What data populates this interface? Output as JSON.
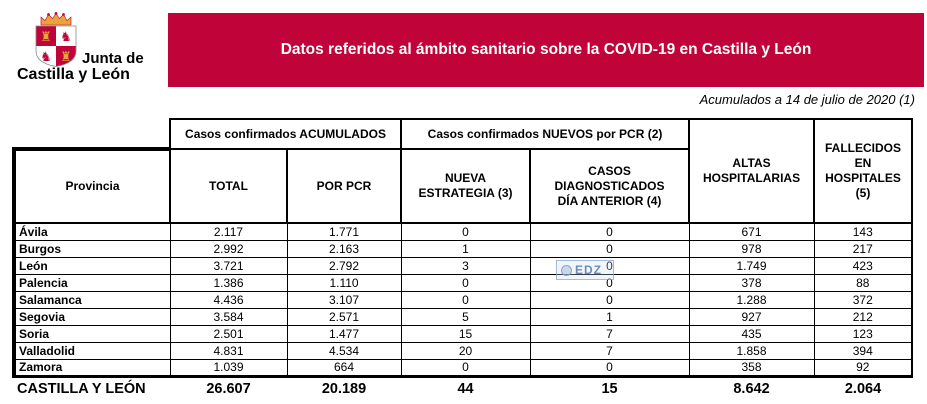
{
  "logo": {
    "line1": "Junta de",
    "line2": "Castilla y León",
    "emblem": "junta-castilla-y-leon-coat-of-arms",
    "colors": {
      "red": "#C00339",
      "gold": "#E8A33C"
    }
  },
  "banner": {
    "title": "Datos referidos al ámbito sanitario sobre la COVID-19 en Castilla y León",
    "bg_color": "#C00339",
    "text_color": "#FFFFFF"
  },
  "subtitle": "Acumulados a 14 de julio de 2020 (1)",
  "table": {
    "group_headers": [
      "Casos confirmados ACUMULADOS",
      "Casos confirmados NUEVOS por PCR (2)"
    ],
    "col_headers": [
      "Provincia",
      "TOTAL",
      "POR PCR",
      "NUEVA\nESTRATEGIA (3)",
      "CASOS\nDIAGNOSTICADOS\nDÍA ANTERIOR (4)",
      "ALTAS\nHOSPITALARIAS",
      "FALLECIDOS\nEN\nHOSPITALES\n(5)"
    ],
    "rows": [
      [
        "Ávila",
        "2.117",
        "1.771",
        "0",
        "0",
        "671",
        "143"
      ],
      [
        "Burgos",
        "2.992",
        "2.163",
        "1",
        "0",
        "978",
        "217"
      ],
      [
        "León",
        "3.721",
        "2.792",
        "3",
        "0",
        "1.749",
        "423"
      ],
      [
        "Palencia",
        "1.386",
        "1.110",
        "0",
        "0",
        "378",
        "88"
      ],
      [
        "Salamanca",
        "4.436",
        "3.107",
        "0",
        "0",
        "1.288",
        "372"
      ],
      [
        "Segovia",
        "3.584",
        "2.571",
        "5",
        "1",
        "927",
        "212"
      ],
      [
        "Soria",
        "2.501",
        "1.477",
        "15",
        "7",
        "435",
        "123"
      ],
      [
        "Valladolid",
        "4.831",
        "4.534",
        "20",
        "7",
        "1.858",
        "394"
      ],
      [
        "Zamora",
        "1.039",
        "664",
        "0",
        "0",
        "358",
        "92"
      ]
    ],
    "totals": [
      "CASTILLA Y LEÓN",
      "26.607",
      "20.189",
      "44",
      "15",
      "8.642",
      "2.064"
    ]
  },
  "watermark": {
    "text": "EDZ"
  }
}
